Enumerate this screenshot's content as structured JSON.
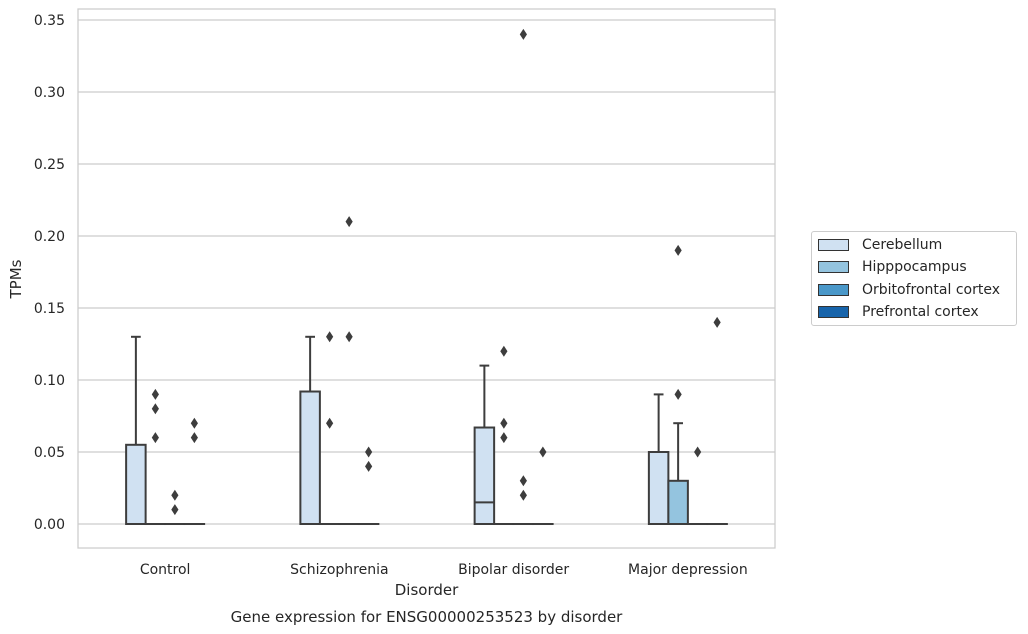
{
  "chart_data": {
    "type": "box",
    "title": "Gene expression for ENSG00000253523 by disorder",
    "xlabel": "Disorder",
    "ylabel": "TPMs",
    "ylim": [
      -0.016,
      0.358
    ],
    "yticks": [
      "0.00",
      "0.05",
      "0.10",
      "0.15",
      "0.20",
      "0.25",
      "0.30",
      "0.35"
    ],
    "categories": [
      "Control",
      "Schizophrenia",
      "Bipolar disorder",
      "Major depression"
    ],
    "grid": true,
    "legend_position": "right",
    "series": [
      {
        "name": "Cerebellum",
        "color": "#d0e1f2",
        "boxes": [
          {
            "q1": 0,
            "median": 0,
            "q3": 0.055,
            "whisker_low": 0,
            "whisker_high": 0.13,
            "outliers": []
          },
          {
            "q1": 0,
            "median": 0,
            "q3": 0.092,
            "whisker_low": 0,
            "whisker_high": 0.13,
            "outliers": []
          },
          {
            "q1": 0,
            "median": 0.015,
            "q3": 0.067,
            "whisker_low": 0,
            "whisker_high": 0.11,
            "outliers": []
          },
          {
            "q1": 0,
            "median": 0,
            "q3": 0.05,
            "whisker_low": 0,
            "whisker_high": 0.09,
            "outliers": []
          }
        ]
      },
      {
        "name": "Hipppocampus",
        "color": "#94c4df",
        "boxes": [
          {
            "q1": 0,
            "median": 0,
            "q3": 0,
            "whisker_low": 0,
            "whisker_high": 0,
            "outliers": [
              0.06,
              0.08,
              0.09
            ]
          },
          {
            "q1": 0,
            "median": 0,
            "q3": 0,
            "whisker_low": 0,
            "whisker_high": 0,
            "outliers": [
              0.07,
              0.13
            ]
          },
          {
            "q1": 0,
            "median": 0,
            "q3": 0,
            "whisker_low": 0,
            "whisker_high": 0,
            "outliers": [
              0.06,
              0.07,
              0.12
            ]
          },
          {
            "q1": 0,
            "median": 0,
            "q3": 0.03,
            "whisker_low": 0,
            "whisker_high": 0.07,
            "outliers": [
              0.09,
              0.19
            ]
          }
        ]
      },
      {
        "name": "Orbitofrontal cortex",
        "color": "#4a98c9",
        "boxes": [
          {
            "q1": 0,
            "median": 0,
            "q3": 0,
            "whisker_low": 0,
            "whisker_high": 0,
            "outliers": [
              0.01,
              0.02
            ]
          },
          {
            "q1": 0,
            "median": 0,
            "q3": 0,
            "whisker_low": 0,
            "whisker_high": 0,
            "outliers": [
              0.13,
              0.21
            ]
          },
          {
            "q1": 0,
            "median": 0,
            "q3": 0,
            "whisker_low": 0,
            "whisker_high": 0,
            "outliers": [
              0.02,
              0.03,
              0.34
            ]
          },
          {
            "q1": 0,
            "median": 0,
            "q3": 0,
            "whisker_low": 0,
            "whisker_high": 0,
            "outliers": [
              0.05
            ]
          }
        ]
      },
      {
        "name": "Prefrontal cortex",
        "color": "#1764ab",
        "boxes": [
          {
            "q1": 0,
            "median": 0,
            "q3": 0,
            "whisker_low": 0,
            "whisker_high": 0,
            "outliers": [
              0.06,
              0.07
            ]
          },
          {
            "q1": 0,
            "median": 0,
            "q3": 0,
            "whisker_low": 0,
            "whisker_high": 0,
            "outliers": [
              0.04,
              0.05
            ]
          },
          {
            "q1": 0,
            "median": 0,
            "q3": 0,
            "whisker_low": 0,
            "whisker_high": 0,
            "outliers": [
              0.05
            ]
          },
          {
            "q1": 0,
            "median": 0,
            "q3": 0,
            "whisker_low": 0,
            "whisker_high": 0,
            "outliers": [
              0.14
            ]
          }
        ]
      }
    ]
  }
}
